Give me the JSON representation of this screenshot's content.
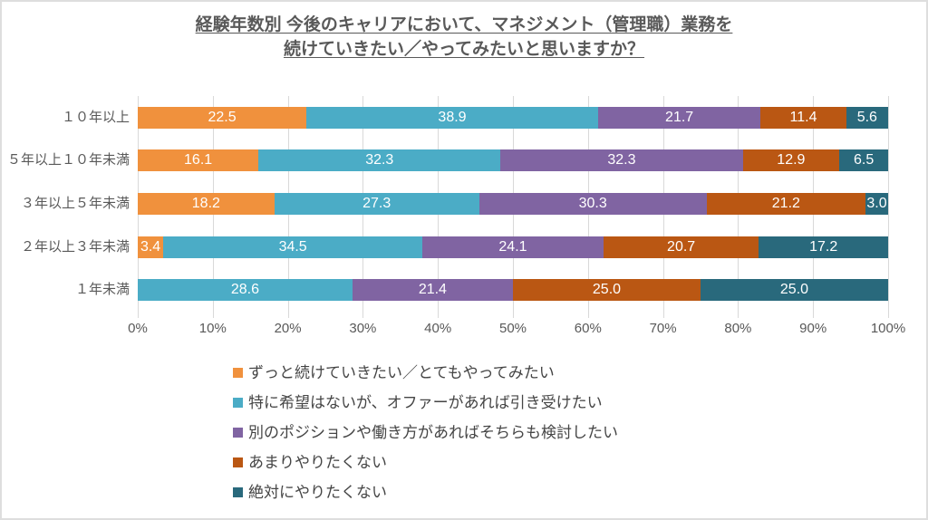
{
  "title": {
    "line1": "経験年数別 今後のキャリアにおいて、マネジメント（管理職）業務を",
    "line2": "続けていきたい／やってみたいと思いますか？"
  },
  "colors": {
    "grid": "#d9d9d9",
    "axis_text": "#595959",
    "data_label_text": "#ffffff",
    "series": [
      "#F0913D",
      "#4BACC6",
      "#8064A2",
      "#BA5713",
      "#29697C"
    ]
  },
  "chart_data": {
    "type": "bar",
    "orientation": "horizontal",
    "stacked": true,
    "percent_stacked": true,
    "title": "経験年数別 今後のキャリアにおいて、マネジメント（管理職）業務を続けていきたい／やってみたいと思いますか？",
    "categories": [
      "１０年以上",
      "５年以上１０年未満",
      "３年以上５年未満",
      "２年以上３年未満",
      "１年未満"
    ],
    "series": [
      {
        "name": "ずっと続けていきたい／とてもやってみたい",
        "color": "#F0913D",
        "values": [
          22.5,
          16.1,
          18.2,
          3.4,
          0
        ]
      },
      {
        "name": "特に希望はないが、オファーがあれば引き受けたい",
        "color": "#4BACC6",
        "values": [
          38.9,
          32.3,
          27.3,
          34.5,
          28.6
        ]
      },
      {
        "name": "別のポジションや働き方があればそちらも検討したい",
        "color": "#8064A2",
        "values": [
          21.7,
          32.3,
          30.3,
          24.1,
          21.4
        ]
      },
      {
        "name": "あまりやりたくない",
        "color": "#BA5713",
        "values": [
          11.4,
          12.9,
          21.2,
          20.7,
          25.0
        ]
      },
      {
        "name": "絶対にやりたくない",
        "color": "#29697C",
        "values": [
          5.6,
          6.5,
          3.0,
          17.2,
          25.0
        ]
      }
    ],
    "x_ticks": [
      "0%",
      "10%",
      "20%",
      "30%",
      "40%",
      "50%",
      "60%",
      "70%",
      "80%",
      "90%",
      "100%"
    ],
    "xlim": [
      0,
      100
    ],
    "grid": "vertical",
    "legend_position": "bottom-left",
    "data_labels": "inside-center, white, one decimal, hidden when value is 0"
  }
}
